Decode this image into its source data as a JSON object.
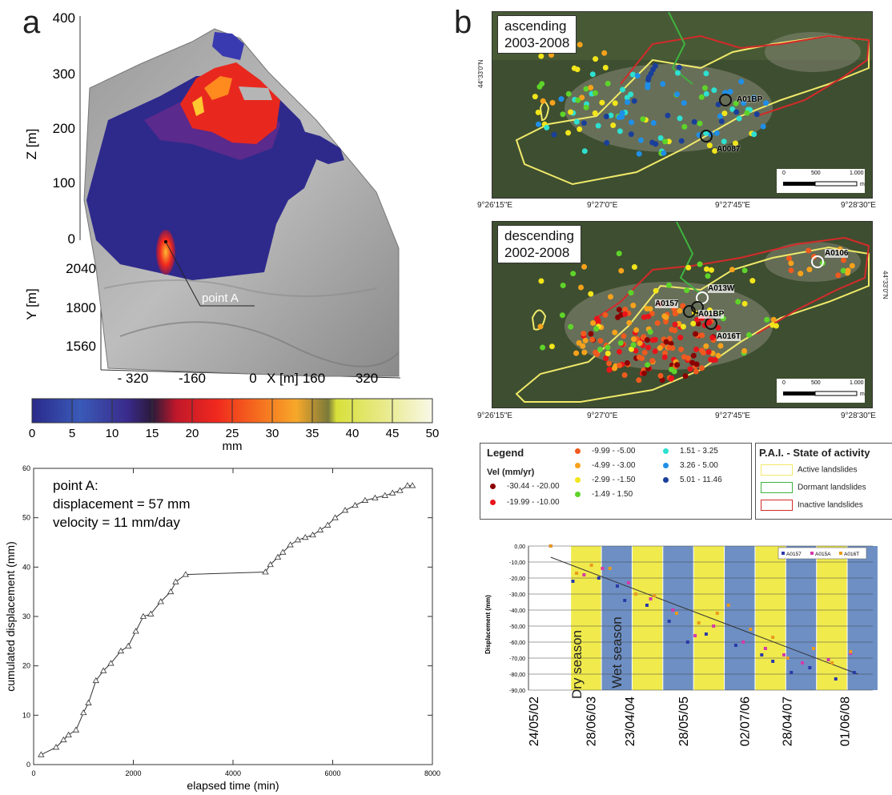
{
  "panel_a": {
    "letter": "a",
    "z_axis": {
      "label": "Z [m]",
      "ticks": [
        "400",
        "300",
        "200",
        "100",
        "0"
      ]
    },
    "y_axis": {
      "label": "Y [m]",
      "ticks": [
        "2040",
        "1800",
        "1560"
      ]
    },
    "x_axis": {
      "label": "X [m]",
      "ticks": [
        "- 320",
        "-160",
        "0",
        "160",
        "320"
      ]
    },
    "point_label": "point A",
    "colorbar": {
      "ticks": [
        "0",
        "5",
        "10",
        "15",
        "20",
        "25",
        "30",
        "35",
        "40",
        "45",
        "50"
      ],
      "unit": "mm"
    }
  },
  "panel_b": {
    "letter": "b",
    "map_top": {
      "title_line1": "ascending",
      "title_line2": "2003-2008",
      "points": [
        "A01BP",
        "A0087"
      ],
      "lat_label": "44°33'0\"N",
      "lon_ticks": [
        "9°26'15\"E",
        "9°27'0\"E",
        "9°27'45\"E",
        "9°28'30\"E"
      ],
      "scale": [
        "0",
        "500",
        "1.000",
        "m"
      ]
    },
    "map_bottom": {
      "title_line1": "descending",
      "title_line2": "2002-2008",
      "points": [
        "A0106",
        "A013W",
        "A0157",
        "A01BP",
        "A016T"
      ],
      "lat_label": "44°33'0\"N",
      "lon_ticks": [
        "9°26'15\"E",
        "9°27'0\"E",
        "9°27'45\"E",
        "9°28'30\"E"
      ],
      "scale": [
        "0",
        "500",
        "1.000",
        "m"
      ]
    }
  },
  "legend": {
    "title": "Legend",
    "vel_title": "Vel (mm/yr)",
    "classes": [
      {
        "range": "-30.44 - -20.00",
        "color": "#8b0000"
      },
      {
        "range": "-19.99 - -10.00",
        "color": "#e8141a"
      },
      {
        "range": "-9.99 - -5.00",
        "color": "#f05a1e"
      },
      {
        "range": "-4.99 - -3.00",
        "color": "#f7a21b"
      },
      {
        "range": "-2.99 - -1.50",
        "color": "#f2e51a"
      },
      {
        "range": "-1.49 - 1.50",
        "color": "#5ed42a"
      },
      {
        "range": "1.51 - 3.25",
        "color": "#2ee0d0"
      },
      {
        "range": "3.26 - 5.00",
        "color": "#1f8fe8"
      },
      {
        "range": "5.01 - 11.46",
        "color": "#1a3f9a"
      }
    ],
    "pai_title": "P.A.I. - State of activity",
    "pai_items": [
      {
        "label": "Active landslides",
        "color": "#f0ea6a"
      },
      {
        "label": "Dormant landslides",
        "color": "#3fb33f"
      },
      {
        "label": "Inactive landslides",
        "color": "#d42a2a"
      }
    ]
  },
  "chart_data": [
    {
      "type": "line",
      "title": "",
      "annotation_lines": [
        "point A:",
        "displacement = 57 mm",
        "velocity = 11 mm/day"
      ],
      "xlabel": "elapsed time (min)",
      "ylabel": "cumulated displacement (mm)",
      "xlim": [
        0,
        8000
      ],
      "ylim": [
        0,
        60
      ],
      "xticks": [
        "0",
        "2000",
        "4000",
        "6000",
        "8000"
      ],
      "yticks": [
        "0",
        "10",
        "20",
        "30",
        "40",
        "50",
        "60"
      ],
      "x": [
        150,
        450,
        600,
        700,
        850,
        1000,
        1100,
        1250,
        1400,
        1550,
        1750,
        1900,
        2050,
        2200,
        2350,
        2550,
        2750,
        2850,
        3050,
        4650,
        4750,
        4900,
        5000,
        5150,
        5300,
        5450,
        5600,
        5750,
        5900,
        6050,
        6250,
        6450,
        6650,
        6850,
        7050,
        7200,
        7350,
        7500,
        7600
      ],
      "y": [
        2.0,
        3.5,
        5.0,
        6.0,
        7.0,
        10.5,
        12.5,
        17.0,
        19.0,
        20.5,
        23.0,
        24.0,
        27.0,
        30.0,
        30.5,
        33.0,
        35.0,
        37.0,
        38.5,
        39.0,
        40.5,
        42.0,
        43.0,
        44.5,
        45.5,
        46.0,
        46.5,
        47.5,
        48.5,
        50.0,
        51.5,
        52.5,
        53.5,
        54.0,
        54.5,
        55.0,
        55.5,
        56.5,
        56.5
      ]
    },
    {
      "type": "scatter",
      "title": "",
      "ylabel": "Displacement (mm)",
      "xlabel": "",
      "ylim": [
        -90,
        0
      ],
      "yticks": [
        "0,00",
        "-10,00",
        "-20,00",
        "-30,00",
        "-40,00",
        "-50,00",
        "-60,00",
        "-70,00",
        "-80,00",
        "-90,00"
      ],
      "xticks": [
        "24/05/02",
        "28/06/03",
        "23/04/04",
        "28/05/05",
        "02/07/06",
        "28/04/07",
        "01/06/08"
      ],
      "season_labels": [
        "Dry season",
        "Wet season"
      ],
      "season_colors": {
        "dry": "#f0ea4c",
        "wet": "#6d8fc4"
      },
      "seasons": [
        "dry",
        "wet",
        "dry",
        "wet",
        "dry",
        "wet",
        "dry",
        "wet",
        "dry",
        "wet"
      ],
      "series": [
        {
          "name": "A0157",
          "color": "#2a3aa8",
          "values": [
            [
              0.6,
              0
            ],
            [
              1.2,
              -22
            ],
            [
              1.9,
              -20
            ],
            [
              2.4,
              -25
            ],
            [
              2.6,
              -34
            ],
            [
              3.2,
              -37
            ],
            [
              3.8,
              -47
            ],
            [
              4.3,
              -60
            ],
            [
              4.8,
              -55
            ],
            [
              5.6,
              -62
            ],
            [
              6.3,
              -68
            ],
            [
              6.6,
              -72
            ],
            [
              7.1,
              -79
            ],
            [
              7.6,
              -76
            ],
            [
              8.3,
              -83
            ],
            [
              8.8,
              -79
            ]
          ]
        },
        {
          "name": "A015A",
          "color": "#d43aa8",
          "values": [
            [
              0.6,
              0
            ],
            [
              1.5,
              -18
            ],
            [
              2.0,
              -14
            ],
            [
              2.7,
              -23
            ],
            [
              3.3,
              -33
            ],
            [
              3.9,
              -40
            ],
            [
              4.5,
              -56
            ],
            [
              5.0,
              -50
            ],
            [
              5.8,
              -60
            ],
            [
              6.4,
              -64
            ],
            [
              6.9,
              -68
            ],
            [
              7.4,
              -73
            ],
            [
              8.1,
              -71
            ],
            [
              8.7,
              -67
            ]
          ]
        },
        {
          "name": "A016T",
          "color": "#e89a1e",
          "values": [
            [
              0.6,
              0
            ],
            [
              1.3,
              -17
            ],
            [
              1.7,
              -12
            ],
            [
              2.2,
              -14
            ],
            [
              2.9,
              -30
            ],
            [
              3.4,
              -31
            ],
            [
              4.0,
              -42
            ],
            [
              4.6,
              -48
            ],
            [
              5.1,
              -42
            ],
            [
              5.4,
              -37
            ],
            [
              6.0,
              -52
            ],
            [
              6.6,
              -57
            ],
            [
              7.0,
              -70
            ],
            [
              7.7,
              -64
            ],
            [
              8.2,
              -73
            ],
            [
              8.7,
              -66
            ]
          ]
        }
      ],
      "trend": [
        [
          0.6,
          -7
        ],
        [
          8.9,
          -80
        ]
      ]
    }
  ]
}
